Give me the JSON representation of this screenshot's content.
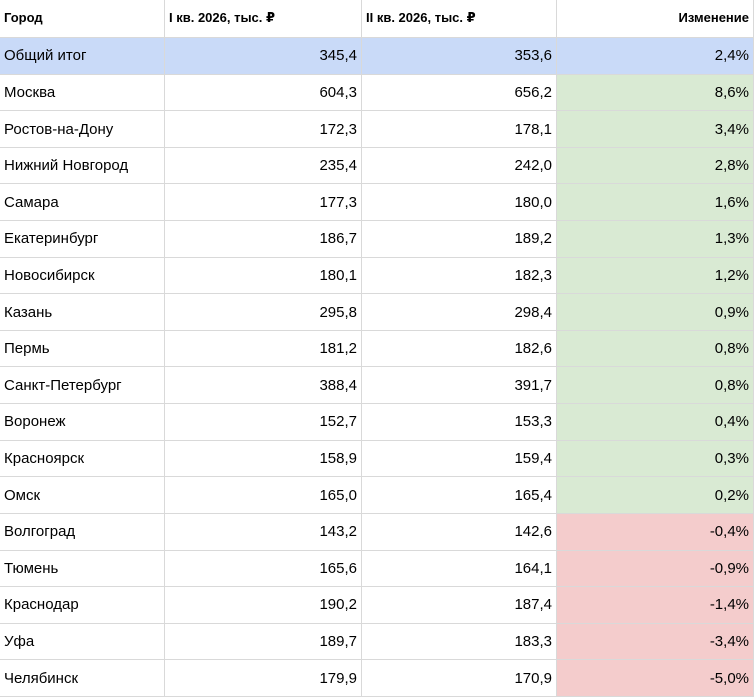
{
  "table": {
    "header": [
      "Город",
      "I кв. 2026, тыс. ₽",
      "II кв. 2026, тыс. ₽",
      "Изменение"
    ],
    "total": [
      "Общий итог",
      "345,4",
      "353,6",
      "2,4%"
    ],
    "rows": [
      [
        "Москва",
        "604,3",
        "656,2",
        "8,6%"
      ],
      [
        "Ростов-на-Дону",
        "172,3",
        "178,1",
        "3,4%"
      ],
      [
        "Нижний Новгород",
        "235,4",
        "242,0",
        "2,8%"
      ],
      [
        "Самара",
        "177,3",
        "180,0",
        "1,6%"
      ],
      [
        "Екатеринбург",
        "186,7",
        "189,2",
        "1,3%"
      ],
      [
        "Новосибирск",
        "180,1",
        "182,3",
        "1,2%"
      ],
      [
        "Казань",
        "295,8",
        "298,4",
        "0,9%"
      ],
      [
        "Пермь",
        "181,2",
        "182,6",
        "0,8%"
      ],
      [
        "Санкт-Петербург",
        "388,4",
        "391,7",
        "0,8%"
      ],
      [
        "Воронеж",
        "152,7",
        "153,3",
        "0,4%"
      ],
      [
        "Красноярск",
        "158,9",
        "159,4",
        "0,3%"
      ],
      [
        "Омск",
        "165,0",
        "165,4",
        "0,2%"
      ],
      [
        "Волгоград",
        "143,2",
        "142,6",
        "-0,4%"
      ],
      [
        "Тюмень",
        "165,6",
        "164,1",
        "-0,9%"
      ],
      [
        "Краснодар",
        "190,2",
        "187,4",
        "-1,4%"
      ],
      [
        "Уфа",
        "189,7",
        "183,3",
        "-3,4%"
      ],
      [
        "Челябинск",
        "179,9",
        "170,9",
        "-5,0%"
      ]
    ]
  }
}
